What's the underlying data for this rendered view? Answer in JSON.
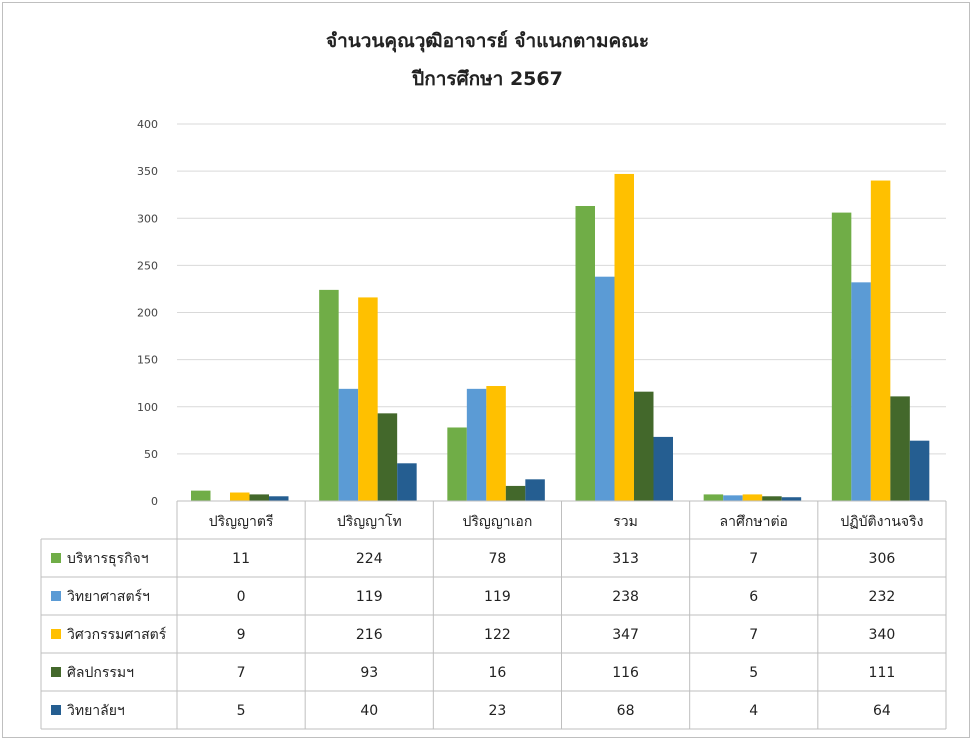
{
  "chart_data": {
    "type": "bar",
    "title": "จำนวนคุณวุฒิอาจารย์ จำแนกตามคณะ",
    "subtitle": "ปีการศึกษา 2567",
    "categories": [
      "ปริญญาตรี",
      "ปริญญาโท",
      "ปริญญาเอก",
      "รวม",
      "ลาศึกษาต่อ",
      "ปฏิบัติงานจริง"
    ],
    "ylim": [
      0,
      400
    ],
    "yticks": [
      0,
      50,
      100,
      150,
      200,
      250,
      300,
      350,
      400
    ],
    "grid": true,
    "legend_placement": "data-table",
    "series": [
      {
        "name": "บริหารธุรกิจฯ",
        "color": "#70ad47",
        "values": [
          11,
          224,
          78,
          313,
          7,
          306
        ]
      },
      {
        "name": "วิทยาศาสตร์ฯ",
        "color": "#5b9bd5",
        "values": [
          0,
          119,
          119,
          238,
          6,
          232
        ]
      },
      {
        "name": "วิศวกรรมศาสตร์",
        "color": "#ffc000",
        "values": [
          9,
          216,
          122,
          347,
          7,
          340
        ]
      },
      {
        "name": "ศิลปกรรมฯ",
        "color": "#43682b",
        "values": [
          7,
          93,
          16,
          116,
          5,
          111
        ]
      },
      {
        "name": "วิทยาลัยฯ",
        "color": "#255e91",
        "values": [
          5,
          40,
          23,
          68,
          4,
          64
        ]
      }
    ]
  }
}
